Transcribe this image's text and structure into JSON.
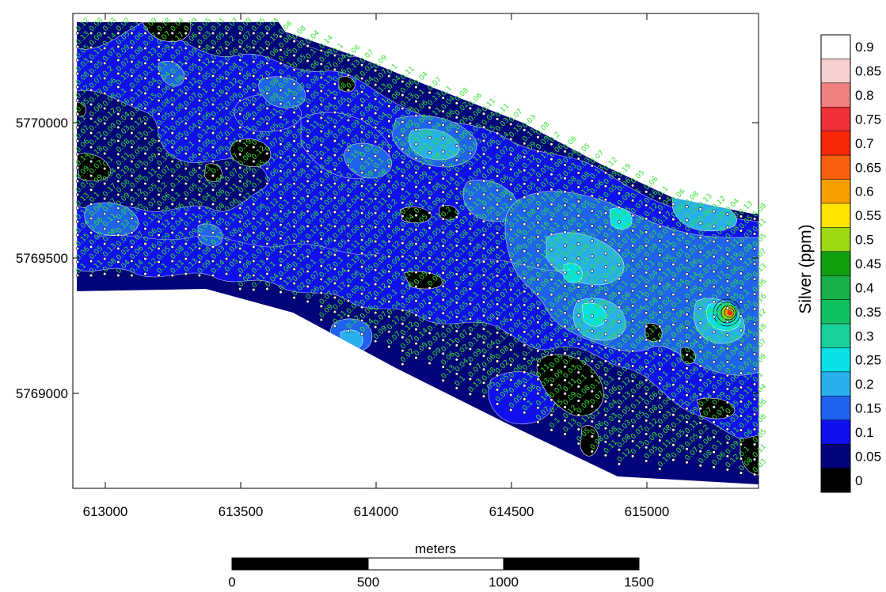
{
  "map": {
    "x_axis": {
      "ticks": [
        "613000",
        "613500",
        "614000",
        "614500",
        "615000"
      ]
    },
    "y_axis": {
      "ticks": [
        "5770000",
        "5769500",
        "5769000"
      ]
    },
    "sample_labels": [
      "0.12",
      "0.13",
      "0.05",
      "0.03",
      "0.08",
      "0.12",
      "0.05",
      "0.1",
      "0.07",
      "0.06",
      "0.14",
      "0.09",
      "0.07",
      "0.13",
      "0.11",
      "0.04",
      "0.15",
      "0.06",
      "0.1",
      "0.08",
      "0.09",
      "0.11",
      "0.05",
      "0.07",
      "0.13",
      "0.06",
      "0.16",
      "0.12",
      "0.18",
      "0.07",
      "0.09",
      "0.1",
      "0.04",
      "0.06",
      "0.08",
      "0.05",
      "0.11",
      "0.03",
      "0.14",
      "0.07",
      "0.2",
      "0.06",
      "0.08",
      "0.12",
      "0.09",
      "0.05",
      "0.1",
      "0.04",
      "0.17",
      "0.07",
      "0.11",
      "0.06",
      "0.13",
      "0.08",
      "0.02",
      "0.05",
      "0.09",
      "0.07",
      "0.15",
      "0.1",
      "0.06",
      "0.04",
      "0.03",
      "0.08",
      "0.11",
      "0.19",
      "0.06",
      "0.09",
      "0.05",
      "0.12",
      "0.07",
      "0.02",
      "0.04",
      "0.1",
      "0.06",
      "0.08",
      "0.05",
      "0.03",
      "0.11",
      "0.09"
    ]
  },
  "legend": {
    "title": "Silver (ppm)",
    "levels": [
      "0",
      "0.05",
      "0.1",
      "0.15",
      "0.2",
      "0.25",
      "0.3",
      "0.35",
      "0.4",
      "0.45",
      "0.5",
      "0.55",
      "0.6",
      "0.65",
      "0.7",
      "0.75",
      "0.8",
      "0.85",
      "0.9"
    ],
    "colors": [
      "#000000",
      "#04047a",
      "#1010ee",
      "#1e62ee",
      "#28b0ee",
      "#08e0e8",
      "#18d09a",
      "#10c060",
      "#18b048",
      "#10a010",
      "#9ed812",
      "#fde400",
      "#f9a000",
      "#f86010",
      "#f82808",
      "#f0303a",
      "#f08080",
      "#f8d0d0",
      "#ffffff"
    ]
  },
  "scale_bar": {
    "title": "meters",
    "labels": [
      "0",
      "500",
      "1000",
      "1500"
    ]
  }
}
